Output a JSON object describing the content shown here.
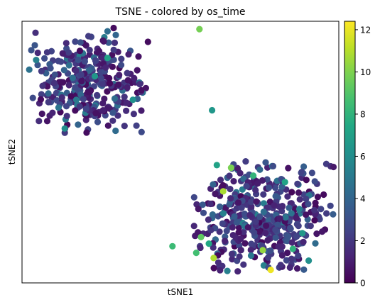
{
  "chart_data": {
    "type": "scatter",
    "title": "TSNE - colored by os_time",
    "xlabel": "tSNE1",
    "ylabel": "tSNE2",
    "colorbar": {
      "label": "",
      "colormap": "viridis",
      "range": [
        0,
        12.4
      ],
      "ticks": [
        0,
        2,
        4,
        6,
        8,
        10,
        12
      ],
      "tick_labels": [
        "0",
        "2",
        "4",
        "6",
        "8",
        "10",
        "12"
      ]
    },
    "axes": {
      "x_ticks_visible": false,
      "y_ticks_visible": false,
      "grid": false
    },
    "clusters": [
      {
        "name": "upper-left cluster",
        "x_range": [
          -0.96,
          -0.2
        ],
        "y_range": [
          0.1,
          0.95
        ],
        "approx_points": 330
      },
      {
        "name": "lower-right cluster",
        "x_range": [
          0.08,
          0.97
        ],
        "y_range": [
          -0.93,
          -0.05
        ],
        "approx_points": 420
      }
    ],
    "highlight_points": [
      {
        "x": 0.12,
        "y": 0.94,
        "value": 9.8
      },
      {
        "x": -0.46,
        "y": 0.72,
        "value": 7.0
      },
      {
        "x": -0.54,
        "y": 0.58,
        "value": 6.5
      },
      {
        "x": -0.3,
        "y": 0.4,
        "value": 6.2
      },
      {
        "x": -0.73,
        "y": 0.18,
        "value": 6.0
      },
      {
        "x": 0.2,
        "y": 0.32,
        "value": 6.5
      },
      {
        "x": 0.23,
        "y": -0.1,
        "value": 7.1
      },
      {
        "x": 0.32,
        "y": -0.12,
        "value": 9.9
      },
      {
        "x": 0.46,
        "y": -0.18,
        "value": 8.1
      },
      {
        "x": 0.66,
        "y": -0.23,
        "value": 7.2
      },
      {
        "x": 0.27,
        "y": -0.3,
        "value": 10.8
      },
      {
        "x": 0.18,
        "y": -0.7,
        "value": 7.4
      },
      {
        "x": 0.13,
        "y": -0.65,
        "value": 9.3
      },
      {
        "x": 0.21,
        "y": -0.81,
        "value": 10.9
      },
      {
        "x": 0.1,
        "y": -0.77,
        "value": 8.6
      },
      {
        "x": 0.52,
        "y": -0.75,
        "value": 10.4
      },
      {
        "x": 0.57,
        "y": -0.9,
        "value": 12.1
      },
      {
        "x": 0.71,
        "y": -0.74,
        "value": 7.9
      },
      {
        "x": 0.77,
        "y": -0.62,
        "value": 6.6
      },
      {
        "x": 0.81,
        "y": -0.83,
        "value": 6.1
      },
      {
        "x": -0.05,
        "y": -0.72,
        "value": 8.4
      }
    ]
  }
}
